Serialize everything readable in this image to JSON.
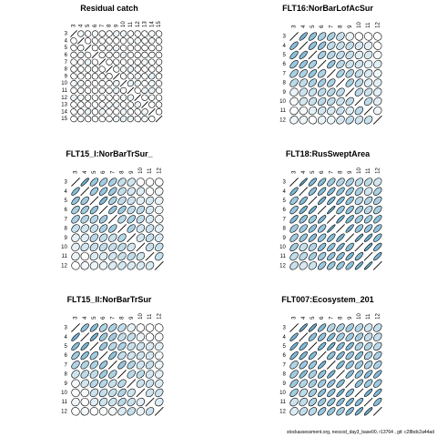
{
  "footer": "stockassessment.org, nescod_day3_base00, r13764 , git: c28bdc2a44ad",
  "colors": {
    "fill_low": "#ffffff",
    "fill_high": "#5aa4c9",
    "diag": "#000000"
  },
  "chart_data": [
    {
      "type": "heatmap",
      "title": "Residual catch",
      "ages": [
        3,
        4,
        5,
        6,
        7,
        8,
        9,
        10,
        11,
        12,
        13,
        14,
        15
      ],
      "pattern": "residual",
      "mark": "correlation ellipse per age pair; fill shade and tilt encode correlation"
    },
    {
      "type": "heatmap",
      "title": "FLT16:NorBarLofAcSur",
      "ages": [
        3,
        4,
        5,
        6,
        7,
        8,
        9,
        10,
        11,
        12
      ],
      "pattern": "blue_top"
    },
    {
      "type": "heatmap",
      "title": "FLT15_I:NorBarTrSur_",
      "ages": [
        3,
        4,
        5,
        6,
        7,
        8,
        9,
        10,
        11,
        12
      ],
      "pattern": "blue_top"
    },
    {
      "type": "heatmap",
      "title": "FLT18:RusSweptArea",
      "ages": [
        3,
        4,
        5,
        6,
        7,
        8,
        9,
        10,
        11,
        12
      ],
      "pattern": "blue_all"
    },
    {
      "type": "heatmap",
      "title": "FLT15_II:NorBarTrSur",
      "ages": [
        3,
        4,
        5,
        6,
        7,
        8,
        9,
        10,
        11,
        12
      ],
      "pattern": "blue_top"
    },
    {
      "type": "heatmap",
      "title": "FLT007:Ecosystem_201",
      "ages": [
        3,
        4,
        5,
        6,
        7,
        8,
        9,
        10,
        11,
        12
      ],
      "pattern": "blue_all"
    }
  ]
}
